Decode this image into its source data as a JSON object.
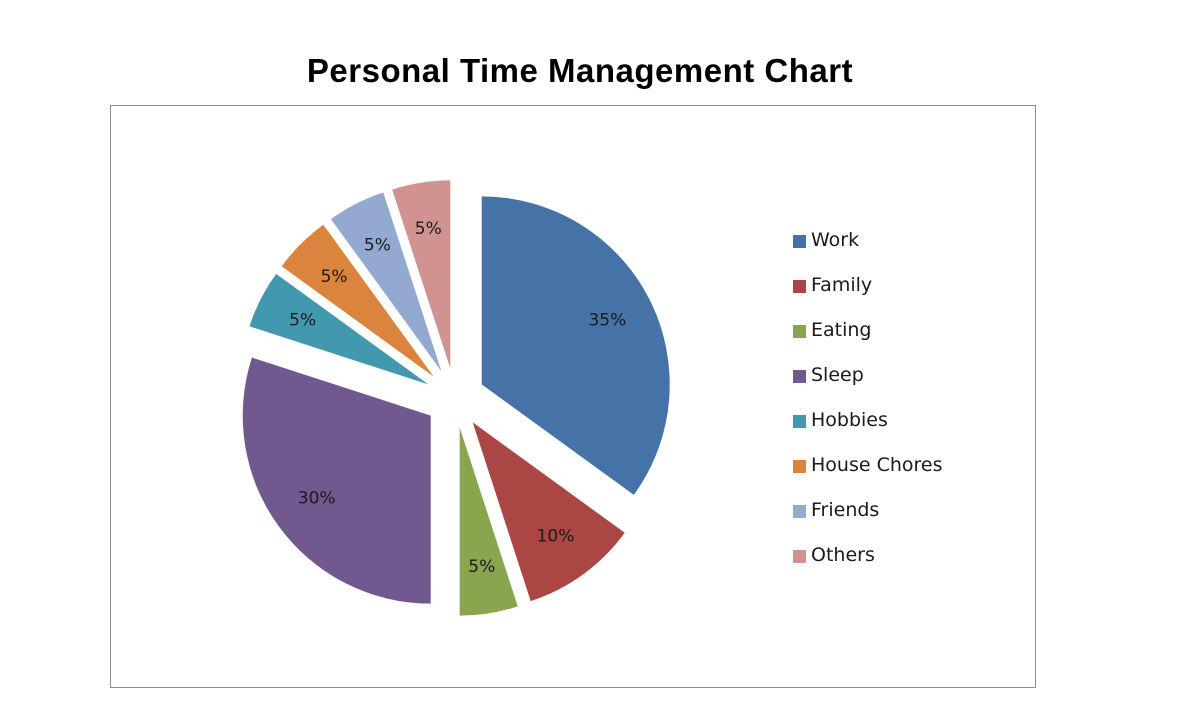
{
  "chart_data": {
    "type": "pie",
    "title": "Personal Time Management Chart",
    "exploded": true,
    "legend_placement": "right",
    "start_angle_deg": 0,
    "direction": "clockwise",
    "slices": [
      {
        "name": "Work",
        "value": 35,
        "label": "35%",
        "color": "#4572a7"
      },
      {
        "name": "Family",
        "value": 10,
        "label": "10%",
        "color": "#aa4643"
      },
      {
        "name": "Eating",
        "value": 5,
        "label": "5%",
        "color": "#89a54e"
      },
      {
        "name": "Sleep",
        "value": 30,
        "label": "30%",
        "color": "#71588f"
      },
      {
        "name": "Hobbies",
        "value": 5,
        "label": "5%",
        "color": "#4198af"
      },
      {
        "name": "House Chores",
        "value": 5,
        "label": "5%",
        "color": "#db843d"
      },
      {
        "name": "Friends",
        "value": 5,
        "label": "5%",
        "color": "#93a9cf"
      },
      {
        "name": "Others",
        "value": 5,
        "label": "5%",
        "color": "#d19392"
      }
    ]
  }
}
